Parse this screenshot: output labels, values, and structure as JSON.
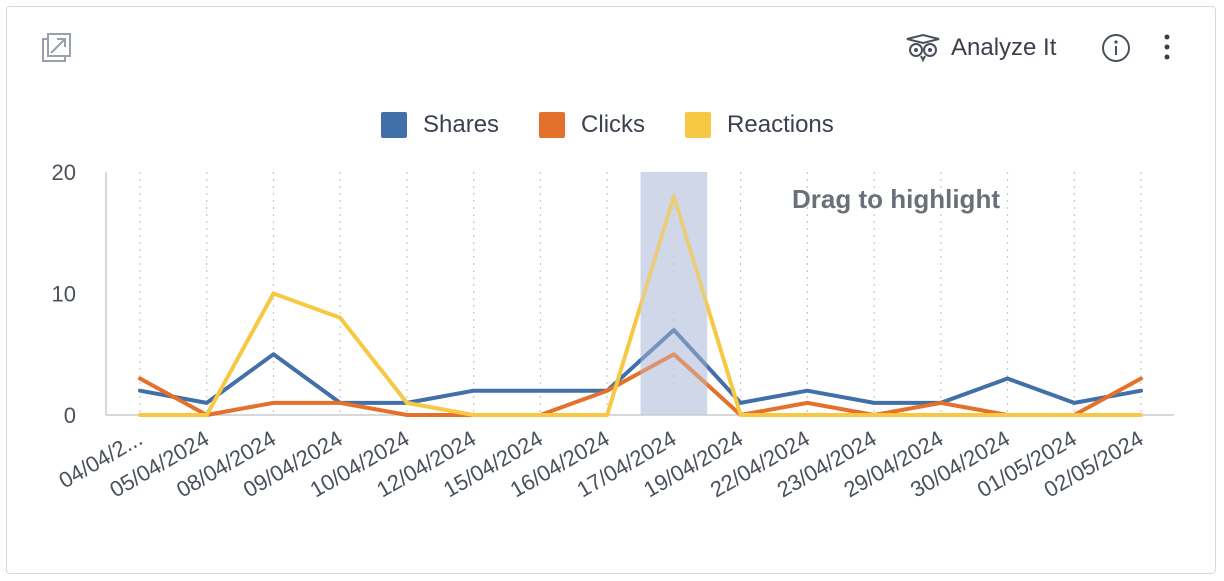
{
  "toolbar": {
    "analyze_label": "Analyze It",
    "expand_icon": "expand-icon",
    "analyze_icon": "owl-icon",
    "info_icon": "info-icon",
    "more_icon": "more-vertical-icon"
  },
  "chart_data": {
    "type": "line",
    "title": "",
    "xlabel": "",
    "ylabel": "",
    "ylim": [
      0,
      20
    ],
    "yticks": [
      "0",
      "10",
      "20"
    ],
    "grid": "vertical dotted",
    "legend_position": "top-center",
    "x_tick_labels": [
      "04/04/2...",
      "05/04/2024",
      "08/04/2024",
      "09/04/2024",
      "10/04/2024",
      "12/04/2024",
      "15/04/2024",
      "16/04/2024",
      "17/04/2024",
      "19/04/2024",
      "22/04/2024",
      "23/04/2024",
      "29/04/2024",
      "30/04/2024",
      "01/05/2024",
      "02/05/2024"
    ],
    "series": [
      {
        "name": "Shares",
        "color": "#416fa8",
        "values": [
          2,
          1,
          5,
          1,
          1,
          2,
          2,
          2,
          7,
          1,
          2,
          1,
          1,
          3,
          1,
          2
        ]
      },
      {
        "name": "Clicks",
        "color": "#e5702b",
        "values": [
          3,
          0,
          1,
          1,
          0,
          0,
          0,
          2,
          5,
          0,
          1,
          0,
          1,
          0,
          0,
          3
        ]
      },
      {
        "name": "Reactions",
        "color": "#f7c843",
        "values": [
          0,
          0,
          10,
          8,
          1,
          0,
          0,
          0,
          18,
          0,
          0,
          0,
          0,
          0,
          0,
          0
        ]
      }
    ],
    "highlight": {
      "category_index": 8,
      "label": "Drag to highlight",
      "color": "#cfd7e8"
    }
  }
}
